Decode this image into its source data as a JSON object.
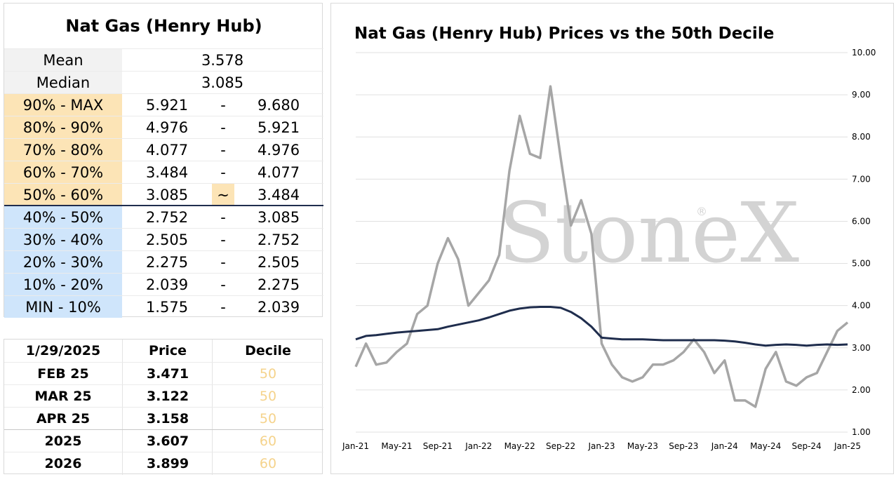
{
  "left": {
    "title": "Nat Gas (Henry Hub)",
    "mean_label": "Mean",
    "mean_value": "3.578",
    "median_label": "Median",
    "median_value": "3.085",
    "deciles": [
      {
        "label": "90% - MAX",
        "low": "5.921",
        "sep": "-",
        "high": "9.680",
        "group": "orange"
      },
      {
        "label": "80% - 90%",
        "low": "4.976",
        "sep": "-",
        "high": "5.921",
        "group": "orange"
      },
      {
        "label": "70% - 80%",
        "low": "4.077",
        "sep": "-",
        "high": "4.976",
        "group": "orange"
      },
      {
        "label": "60% - 70%",
        "low": "3.484",
        "sep": "-",
        "high": "4.077",
        "group": "orange"
      },
      {
        "label": "50% - 60%",
        "low": "3.085",
        "sep": "~",
        "high": "3.484",
        "group": "orange"
      },
      {
        "label": "40% - 50%",
        "low": "2.752",
        "sep": "-",
        "high": "3.085",
        "group": "blue"
      },
      {
        "label": "30% - 40%",
        "low": "2.505",
        "sep": "-",
        "high": "2.752",
        "group": "blue"
      },
      {
        "label": "20% - 30%",
        "low": "2.275",
        "sep": "-",
        "high": "2.505",
        "group": "blue"
      },
      {
        "label": "10% - 20%",
        "low": "2.039",
        "sep": "-",
        "high": "2.275",
        "group": "blue"
      },
      {
        "label": "MIN - 10%",
        "low": "1.575",
        "sep": "-",
        "high": "2.039",
        "group": "blue"
      }
    ]
  },
  "prices": {
    "header": {
      "date": "1/29/2025",
      "price": "Price",
      "decile": "Decile"
    },
    "rows": [
      {
        "contract": "FEB 25",
        "price": "3.471",
        "decile": "50"
      },
      {
        "contract": "MAR 25",
        "price": "3.122",
        "decile": "50"
      },
      {
        "contract": "APR 25",
        "price": "3.158",
        "decile": "50"
      },
      {
        "contract": "2025",
        "price": "3.607",
        "decile": "60"
      },
      {
        "contract": "2026",
        "price": "3.899",
        "decile": "60"
      }
    ]
  },
  "colors": {
    "upper_decile": "#fce4b6",
    "lower_decile": "#cfe5fb",
    "price_line": "#a6a6a6",
    "decile_line": "#1f2d4d",
    "decile_text": "#f5d38c"
  },
  "watermark": {
    "text": "StoneX",
    "reg": "®"
  },
  "chart_data": {
    "type": "line",
    "title": "Nat Gas (Henry Hub) Prices vs the 50th Decile",
    "xlabel": "",
    "ylabel": "",
    "ylim": [
      1.0,
      10.0
    ],
    "y_ticks": [
      "1.00",
      "2.00",
      "3.00",
      "4.00",
      "5.00",
      "6.00",
      "7.00",
      "8.00",
      "9.00",
      "10.00"
    ],
    "x_ticks": [
      "Jan-21",
      "May-21",
      "Sep-21",
      "Jan-22",
      "May-22",
      "Sep-22",
      "Jan-23",
      "May-23",
      "Sep-23",
      "Jan-24",
      "May-24",
      "Sep-24",
      "Jan-25"
    ],
    "grid": "horizontal",
    "legend": "none",
    "x": [
      "Jan-21",
      "Feb-21",
      "Mar-21",
      "Apr-21",
      "May-21",
      "Jun-21",
      "Jul-21",
      "Aug-21",
      "Sep-21",
      "Oct-21",
      "Nov-21",
      "Dec-21",
      "Jan-22",
      "Feb-22",
      "Mar-22",
      "Apr-22",
      "May-22",
      "Jun-22",
      "Jul-22",
      "Aug-22",
      "Sep-22",
      "Oct-22",
      "Nov-22",
      "Dec-22",
      "Jan-23",
      "Feb-23",
      "Mar-23",
      "Apr-23",
      "May-23",
      "Jun-23",
      "Jul-23",
      "Aug-23",
      "Sep-23",
      "Oct-23",
      "Nov-23",
      "Dec-23",
      "Jan-24",
      "Feb-24",
      "Mar-24",
      "Apr-24",
      "May-24",
      "Jun-24",
      "Jul-24",
      "Aug-24",
      "Sep-24",
      "Oct-24",
      "Nov-24",
      "Dec-24",
      "Jan-25"
    ],
    "series": [
      {
        "values": [
          2.55,
          3.1,
          2.6,
          2.65,
          2.9,
          3.1,
          3.8,
          4.0,
          5.0,
          5.6,
          5.1,
          4.0,
          4.3,
          4.6,
          5.2,
          7.2,
          8.5,
          7.6,
          7.5,
          9.2,
          7.5,
          5.9,
          6.5,
          5.7,
          3.1,
          2.6,
          2.3,
          2.2,
          2.3,
          2.6,
          2.6,
          2.7,
          2.9,
          3.2,
          2.9,
          2.4,
          2.7,
          1.75,
          1.75,
          1.6,
          2.5,
          2.9,
          2.2,
          2.1,
          2.3,
          2.4,
          2.9,
          3.4,
          3.6
        ]
      },
      {
        "values": [
          3.2,
          3.28,
          3.3,
          3.33,
          3.36,
          3.38,
          3.4,
          3.42,
          3.44,
          3.5,
          3.55,
          3.6,
          3.65,
          3.72,
          3.8,
          3.88,
          3.93,
          3.96,
          3.97,
          3.97,
          3.95,
          3.85,
          3.7,
          3.5,
          3.24,
          3.22,
          3.2,
          3.2,
          3.2,
          3.19,
          3.18,
          3.18,
          3.18,
          3.18,
          3.18,
          3.18,
          3.17,
          3.15,
          3.12,
          3.08,
          3.05,
          3.07,
          3.08,
          3.07,
          3.05,
          3.07,
          3.08,
          3.07,
          3.08
        ]
      }
    ]
  }
}
